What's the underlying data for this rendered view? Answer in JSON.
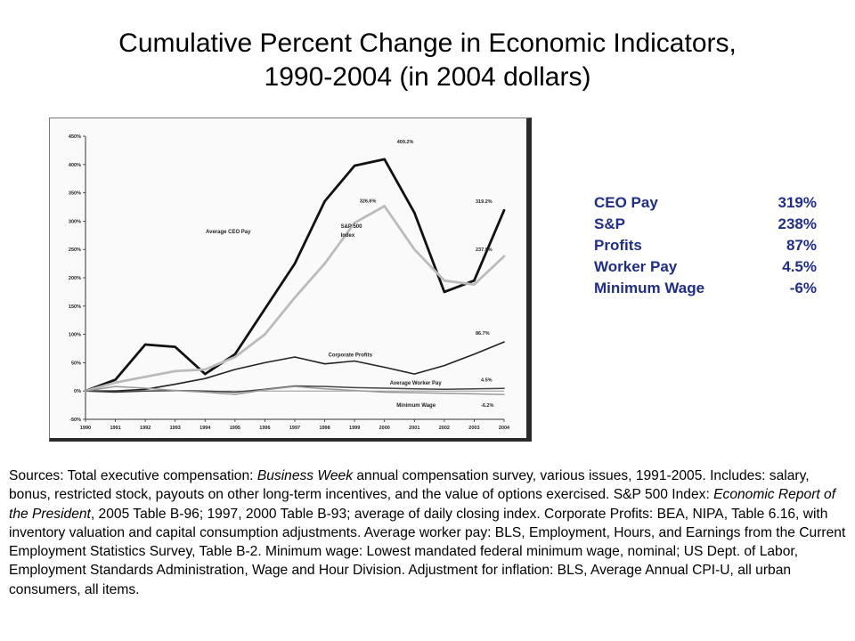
{
  "title": {
    "line1": "Cumulative Percent Change in Economic Indicators,",
    "line2": "1990-2004 (in 2004 dollars)"
  },
  "summary": [
    {
      "label": "CEO Pay",
      "value": "319%"
    },
    {
      "label": "S&P",
      "value": "238%"
    },
    {
      "label": "Profits",
      "value": "87%"
    },
    {
      "label": "Worker Pay",
      "value": "4.5%"
    },
    {
      "label": "Minimum Wage",
      "value": "-6%"
    }
  ],
  "sources": {
    "p1": "Sources: Total executive compensation: ",
    "i1": "Business Week",
    "p2": " annual compensation survey, various issues, 1991-2005. Includes: salary, bonus, restricted stock, payouts on other long-term incentives, and the value of options exercised. S&P 500 Index: ",
    "i2": "Economic Report of the President",
    "p3": ", 2005 Table B-96; 1997, 2000 Table B-93; average of daily closing index. Corporate Profits: BEA, NIPA, Table 6.16, with inventory valuation and capital consumption adjustments. Average worker pay: BLS, Employment, Hours, and Earnings from the Current Employment Statistics Survey, Table B-2. Minimum wage: Lowest mandated federal minimum wage, nominal; US Dept. of Labor, Employment Standards Administration, Wage and Hour Division. Adjustment for inflation: BLS, Average Annual CPI-U, all urban consumers, all items."
  },
  "chart_data": {
    "type": "line",
    "x": [
      "1990",
      "1991",
      "1992",
      "1993",
      "1994",
      "1995",
      "1996",
      "1997",
      "1998",
      "1999",
      "2000",
      "2001",
      "2002",
      "2003",
      "2004"
    ],
    "ylim": [
      -50,
      450
    ],
    "yticks": [
      -50,
      0,
      50,
      100,
      150,
      200,
      250,
      300,
      350,
      400,
      450
    ],
    "ytick_labels": [
      "-50%",
      "0%",
      "50%",
      "100%",
      "150%",
      "200%",
      "250%",
      "300%",
      "350%",
      "400%",
      "450%"
    ],
    "grid": false,
    "series": [
      {
        "name": "Average CEO Pay",
        "color": "#111111",
        "width": 2.8,
        "values": [
          0,
          20,
          82,
          78,
          30,
          65,
          145,
          225,
          335,
          398,
          409.2,
          315,
          175,
          195,
          319.2
        ]
      },
      {
        "name": "S&P 500 Index",
        "color": "#bbbbbb",
        "width": 2.8,
        "values": [
          0,
          15,
          25,
          35,
          38,
          60,
          100,
          165,
          225,
          297,
          326.6,
          250,
          195,
          188,
          237.9
        ]
      },
      {
        "name": "Corporate Profits",
        "color": "#222222",
        "width": 1.6,
        "values": [
          0,
          0,
          3,
          12,
          22,
          38,
          50,
          60,
          48,
          53,
          42,
          30,
          45,
          65,
          86.7
        ]
      },
      {
        "name": "Average Worker Pay",
        "color": "#444444",
        "width": 1.5,
        "values": [
          0,
          -2,
          0,
          1,
          0,
          -2,
          3,
          9,
          8,
          6,
          5,
          4,
          3,
          4,
          4.5
        ]
      },
      {
        "name": "Minimum Wage",
        "color": "#999999",
        "width": 1.5,
        "values": [
          0,
          8,
          5,
          1,
          -2,
          -6,
          2,
          8,
          4,
          1,
          -2,
          -3,
          -4,
          -5,
          -6.2
        ]
      }
    ],
    "annotations": [
      {
        "text": "Average CEO Pay",
        "series": 0,
        "index": 7,
        "dx": -100,
        "dy": -34
      },
      {
        "text": "S&P 500",
        "series": 1,
        "index": 8,
        "dx": 18,
        "dy": -40
      },
      {
        "text": "Index",
        "series": 1,
        "index": 8,
        "dx": 18,
        "dy": -30
      },
      {
        "text": "Corporate Profits",
        "series": 2,
        "index": 8,
        "dx": 4,
        "dy": -8
      },
      {
        "text": "Average Worker Pay",
        "series": 3,
        "index": 10,
        "dx": 6,
        "dy": -4
      },
      {
        "text": "Minimum Wage",
        "series": 4,
        "index": 11,
        "dx": -20,
        "dy": 16
      }
    ],
    "data_labels": [
      {
        "text": "409.2%",
        "series": 0,
        "index": 10,
        "dx": 14,
        "dy": -18
      },
      {
        "text": "326.6%",
        "series": 1,
        "index": 10,
        "dx": -28,
        "dy": -4
      },
      {
        "text": "319.2%",
        "series": 0,
        "index": 14,
        "dx": -32,
        "dy": -8
      },
      {
        "text": "237.9%",
        "series": 1,
        "index": 14,
        "dx": -32,
        "dy": -6
      },
      {
        "text": "86.7%",
        "series": 2,
        "index": 14,
        "dx": -32,
        "dy": -8
      },
      {
        "text": "4.5%",
        "series": 3,
        "index": 14,
        "dx": -26,
        "dy": -8
      },
      {
        "text": "-6.2%",
        "series": 4,
        "index": 14,
        "dx": -26,
        "dy": 14
      }
    ]
  }
}
